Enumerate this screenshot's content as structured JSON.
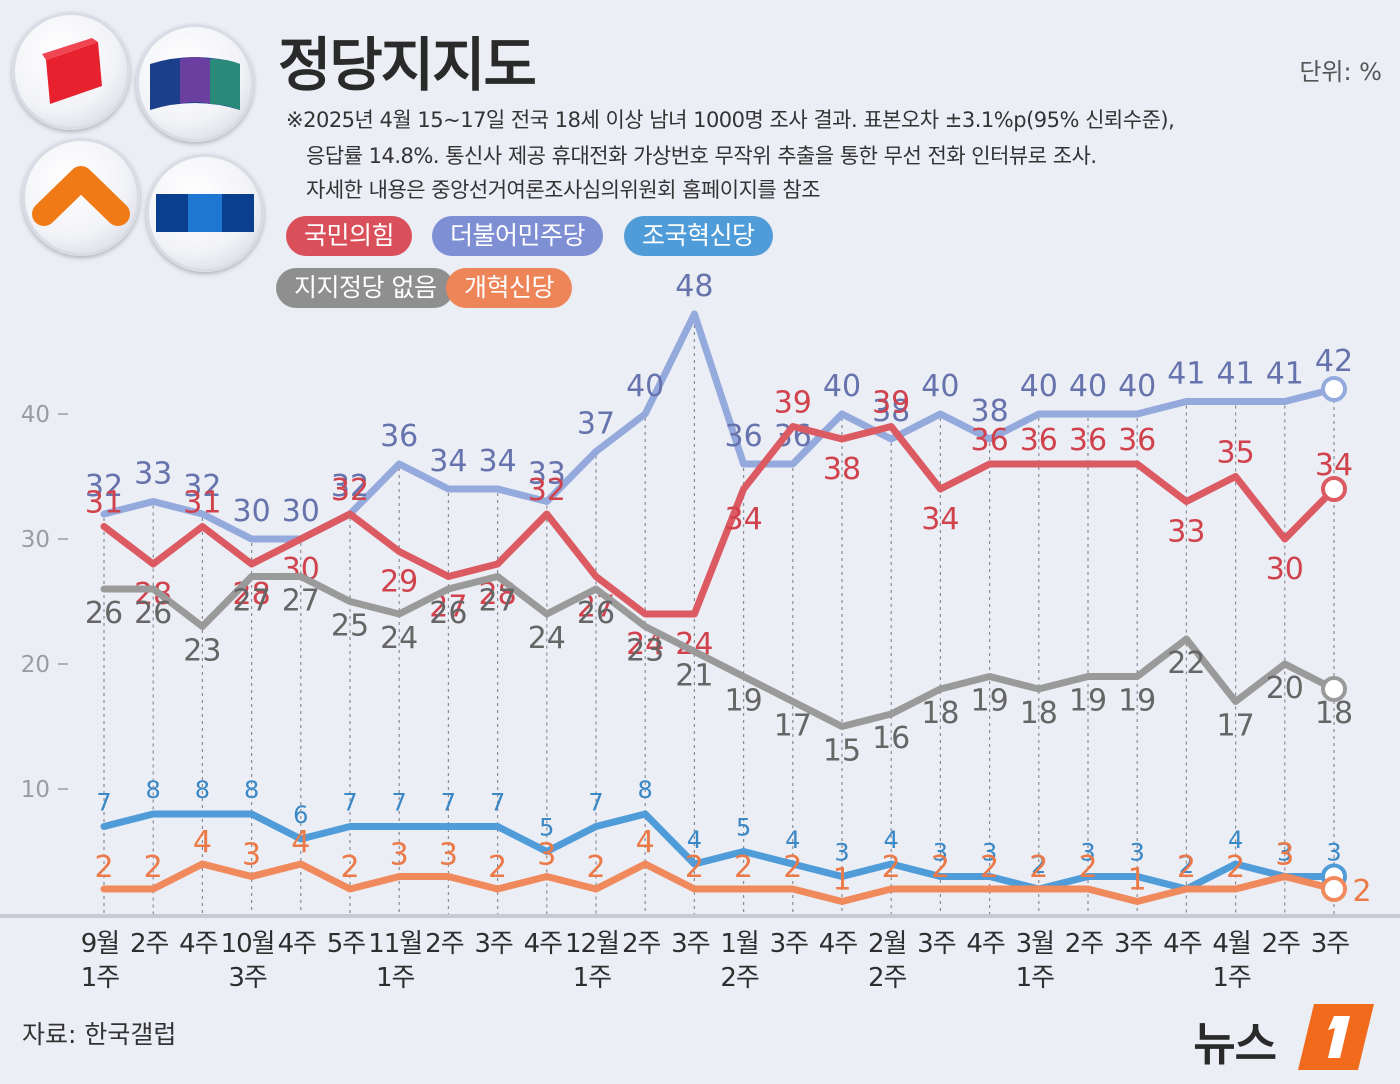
{
  "title": "정당지지도",
  "unit": "단위: %",
  "notes": [
    "※2025년 4월 15~17일 전국 18세 이상 남녀 1000명 조사 결과. 표본오차 ±3.1%p(95% 신뢰수준),",
    "응답률 14.8%. 통신사 제공 휴대전화 가상번호 무작위 추출을 통한 무선 전화 인터뷰로 조사.",
    "자세한 내용은 중앙선거여론조사심의위원회 홈페이지를 참조"
  ],
  "legend": [
    {
      "label": "국민의힘",
      "color": "#d9505a"
    },
    {
      "label": "더불어민주당",
      "color": "#7f8fd4"
    },
    {
      "label": "조국혁신당",
      "color": "#4f9cd8"
    },
    {
      "label": "지지정당 없음",
      "color": "#8f8f8f"
    },
    {
      "label": "개혁신당",
      "color": "#ee8558"
    }
  ],
  "source": "자료: 한국갤럽",
  "brand": "뉴스",
  "chart_data": {
    "type": "line",
    "ylim": [
      0,
      50
    ],
    "yticks": [
      10,
      20,
      30,
      40
    ],
    "categories": [
      [
        "9월",
        "1주"
      ],
      [
        "2주"
      ],
      [
        "4주"
      ],
      [
        "10월",
        "3주"
      ],
      [
        "4주"
      ],
      [
        "5주"
      ],
      [
        "11월",
        "1주"
      ],
      [
        "2주"
      ],
      [
        "3주"
      ],
      [
        "4주"
      ],
      [
        "12월",
        "1주"
      ],
      [
        "2주"
      ],
      [
        "3주"
      ],
      [
        "1월",
        "2주"
      ],
      [
        "3주"
      ],
      [
        "4주"
      ],
      [
        "2월",
        "2주"
      ],
      [
        "3주"
      ],
      [
        "4주"
      ],
      [
        "3월",
        "1주"
      ],
      [
        "2주"
      ],
      [
        "3주"
      ],
      [
        "4주"
      ],
      [
        "4월",
        "1주"
      ],
      [
        "2주"
      ],
      [
        "3주"
      ]
    ],
    "series": [
      {
        "name": "더불어민주당",
        "color": "#94a9dc",
        "label_color": "#6673ac",
        "values": [
          32,
          33,
          32,
          30,
          30,
          32,
          36,
          34,
          34,
          33,
          37,
          40,
          48,
          36,
          36,
          40,
          38,
          40,
          38,
          40,
          40,
          40,
          41,
          41,
          41,
          42
        ]
      },
      {
        "name": "국민의힘",
        "color": "#dc5a61",
        "label_color": "#d0424c",
        "values": [
          31,
          28,
          31,
          28,
          30,
          32,
          29,
          27,
          28,
          32,
          27,
          24,
          24,
          34,
          39,
          38,
          39,
          34,
          36,
          36,
          36,
          36,
          33,
          35,
          30,
          34
        ]
      },
      {
        "name": "지지정당 없음",
        "color": "#9a9a9a",
        "label_color": "#666666",
        "values": [
          26,
          26,
          23,
          27,
          27,
          25,
          24,
          26,
          27,
          24,
          26,
          23,
          21,
          19,
          17,
          15,
          16,
          18,
          19,
          18,
          19,
          19,
          22,
          17,
          20,
          18
        ]
      },
      {
        "name": "조국혁신당",
        "color": "#4f9cd8",
        "label_color": "#3a88c6",
        "values": [
          7,
          8,
          8,
          8,
          6,
          7,
          7,
          7,
          7,
          5,
          7,
          8,
          4,
          5,
          4,
          3,
          4,
          3,
          3,
          2,
          3,
          3,
          2,
          4,
          3,
          3
        ]
      },
      {
        "name": "개혁신당",
        "color": "#f08a5d",
        "label_color": "#eb7a48",
        "values": [
          2,
          2,
          4,
          3,
          4,
          2,
          3,
          3,
          2,
          3,
          2,
          4,
          2,
          2,
          2,
          1,
          2,
          2,
          2,
          2,
          2,
          1,
          2,
          2,
          3,
          2
        ]
      }
    ]
  }
}
